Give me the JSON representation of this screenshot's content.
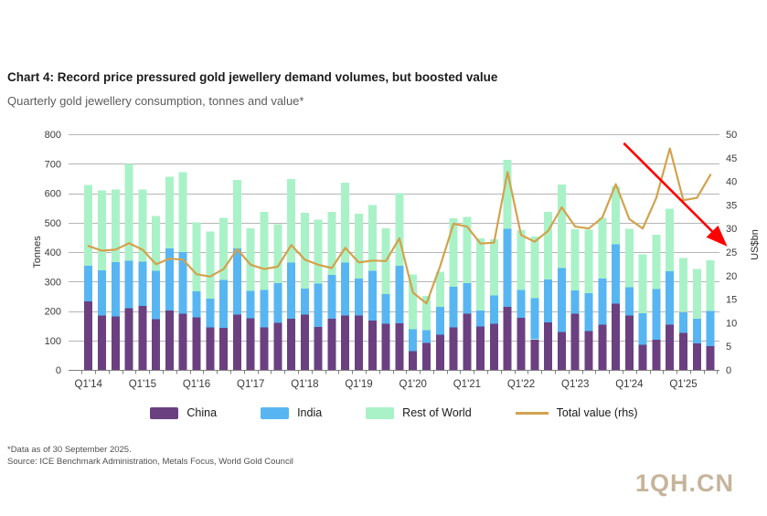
{
  "chart_data": {
    "type": "bar",
    "stacked": true,
    "title": "Chart 4: Record price pressured gold jewellery demand volumes, but boosted value",
    "subtitle": "Quarterly gold jewellery consumption, tonnes and value*",
    "categories": [
      "Q1'14",
      "Q2'14",
      "Q3'14",
      "Q4'14",
      "Q1'15",
      "Q2'15",
      "Q3'15",
      "Q4'15",
      "Q1'16",
      "Q2'16",
      "Q3'16",
      "Q4'16",
      "Q1'17",
      "Q2'17",
      "Q3'17",
      "Q4'17",
      "Q1'18",
      "Q2'18",
      "Q3'18",
      "Q4'18",
      "Q1'19",
      "Q2'19",
      "Q3'19",
      "Q4'19",
      "Q1'20",
      "Q2'20",
      "Q3'20",
      "Q4'20",
      "Q1'21",
      "Q2'21",
      "Q3'21",
      "Q4'21",
      "Q1'22",
      "Q2'22",
      "Q3'22",
      "Q4'22",
      "Q1'23",
      "Q2'23",
      "Q3'23",
      "Q4'23",
      "Q1'24",
      "Q2'24",
      "Q3'24",
      "Q4'24",
      "Q1'25",
      "Q2'25",
      "Q3'25"
    ],
    "x_year_labels": [
      "Q1'14",
      "Q1'15",
      "Q1'16",
      "Q1'17",
      "Q1'18",
      "Q1'19",
      "Q1'20",
      "Q1'21",
      "Q1'22",
      "Q1'23",
      "Q1'24",
      "Q1'25"
    ],
    "series": [
      {
        "name": "China",
        "type": "bar",
        "color": "#6b4080",
        "values": [
          232,
          184,
          182,
          210,
          217,
          172,
          202,
          191,
          179,
          144,
          142,
          187,
          176,
          144,
          159,
          174,
          188,
          145,
          174,
          184,
          184,
          168,
          156,
          159,
          64,
          91,
          119,
          145,
          191,
          147,
          157,
          214,
          177,
          103,
          162,
          129,
          191,
          132,
          154,
          225,
          184,
          86,
          103,
          153,
          125,
          90,
          80
        ]
      },
      {
        "name": "India",
        "type": "bar",
        "color": "#57b6f2",
        "values": [
          122,
          154,
          184,
          160,
          150,
          164,
          211,
          209,
          88,
          98,
          163,
          225,
          92,
          127,
          135,
          190,
          88,
          148,
          149,
          180,
          126,
          169,
          102,
          194,
          74,
          44,
          95,
          137,
          103,
          55,
          96,
          265,
          94,
          140,
          145,
          217,
          78,
          129,
          156,
          202,
          96,
          107,
          172,
          182,
          71,
          83,
          120
        ]
      },
      {
        "name": "Rest of World",
        "type": "bar",
        "color": "#a9f2c8",
        "values": [
          274,
          272,
          247,
          330,
          245,
          186,
          243,
          271,
          234,
          228,
          212,
          233,
          212,
          266,
          201,
          284,
          258,
          217,
          213,
          272,
          220,
          222,
          222,
          247,
          186,
          116,
          119,
          233,
          226,
          245,
          190,
          234,
          203,
          210,
          230,
          284,
          209,
          215,
          206,
          196,
          199,
          200,
          184,
          212,
          184,
          170,
          172
        ]
      },
      {
        "name": "Total value (rhs)",
        "type": "line",
        "axis": "right",
        "color": "#d2a24c",
        "values": [
          26.3,
          25.3,
          25.5,
          26.9,
          25.5,
          22.4,
          23.6,
          23.4,
          20.3,
          19.8,
          21.4,
          25.6,
          22.3,
          21.4,
          21.9,
          26.5,
          23.4,
          22.3,
          21.6,
          25.9,
          22.8,
          23.2,
          23.1,
          27.9,
          16.4,
          14.1,
          21.9,
          31.0,
          30.4,
          26.8,
          27.0,
          42.0,
          28.6,
          27.2,
          29.5,
          34.5,
          30.4,
          30.0,
          32.3,
          39.4,
          32.0,
          30.0,
          36.5,
          47.0,
          36.0,
          36.5,
          41.4
        ]
      }
    ],
    "left_axis": {
      "label": "Tonnes",
      "min": 0,
      "max": 800,
      "step": 100
    },
    "right_axis": {
      "label": "US$bn",
      "min": 0,
      "max": 50,
      "step": 5
    },
    "grid": true,
    "legend_position": "bottom",
    "annotation": {
      "type": "arrow",
      "color": "#ff0000",
      "from_index": 39.6,
      "from_value": 48.1,
      "to_index": 47.0,
      "to_value": 26.9
    }
  },
  "footnotes": {
    "line1": "*Data as of 30 September 2025.",
    "line2": "Source: ICE Benchmark Administration, Metals Focus, World Gold Council"
  },
  "watermark": "1QH.CN"
}
